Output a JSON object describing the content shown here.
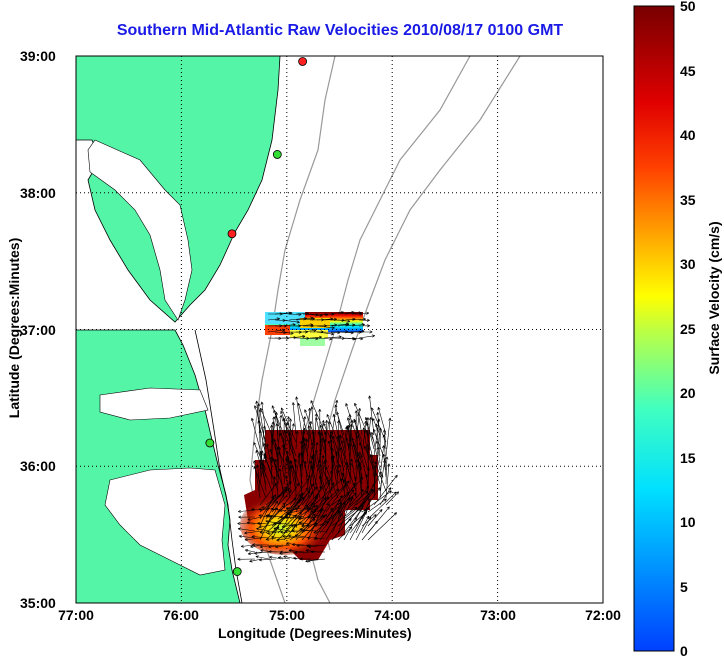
{
  "title": "Southern Mid-Atlantic Raw Velocities 2010/08/17 0100 GMT",
  "x_axis": {
    "label": "Longitude (Degrees:Minutes)",
    "ticks": [
      "77:00",
      "76:00",
      "75:00",
      "74:00",
      "73:00",
      "72:00"
    ]
  },
  "y_axis": {
    "label": "Latitude (Degrees:Minutes)",
    "ticks": [
      "39:00",
      "38:00",
      "37:00",
      "36:00",
      "35:00"
    ]
  },
  "colorbar": {
    "label": "Surface Velocity (cm/s)",
    "ticks": [
      "50",
      "45",
      "40",
      "35",
      "30",
      "25",
      "20",
      "15",
      "10",
      "5",
      "0"
    ],
    "range": [
      0,
      50
    ],
    "colormap": "jet"
  },
  "colors": {
    "land": "#55f5a8",
    "title": "#1a1ae6",
    "bathymetry": "#999999",
    "coast": "#000000"
  },
  "stations": [
    {
      "lon": -74.85,
      "lat": 38.96,
      "color": "#ff2020"
    },
    {
      "lon": -75.09,
      "lat": 38.28,
      "color": "#33dd33"
    },
    {
      "lon": -75.52,
      "lat": 37.7,
      "color": "#ff2020"
    },
    {
      "lon": -75.73,
      "lat": 36.17,
      "color": "#33dd33"
    },
    {
      "lon": -75.47,
      "lat": 35.23,
      "color": "#33dd33"
    }
  ]
}
